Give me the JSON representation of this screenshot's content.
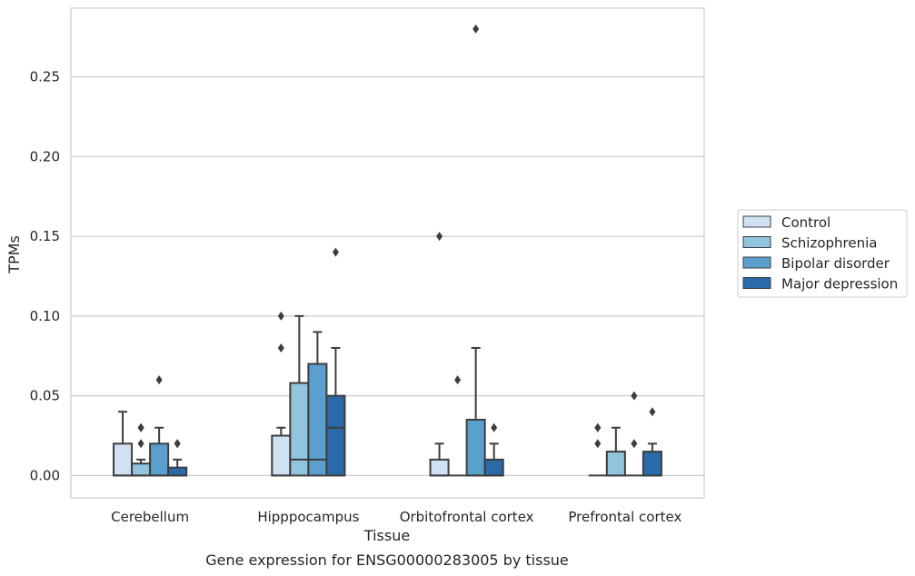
{
  "caption": "Gene expression for ENSG00000283005 by tissue",
  "chart_data": {
    "type": "box",
    "xlabel": "Tissue",
    "ylabel": "TPMs",
    "ylim": [
      -0.014,
      0.293
    ],
    "yticks": [
      0.0,
      0.05,
      0.1,
      0.15,
      0.2,
      0.25
    ],
    "ytick_labels": [
      "0.00",
      "0.05",
      "0.10",
      "0.15",
      "0.20",
      "0.25"
    ],
    "grid": "horizontal",
    "legend_position": "right",
    "categories": [
      "Cerebellum",
      "Hipppocampus",
      "Orbitofrontal cortex",
      "Prefrontal cortex"
    ],
    "series": [
      {
        "name": "Control",
        "color": "#cfe1f2",
        "boxes": [
          {
            "q1": 0.0,
            "median": 0.0,
            "q3": 0.02,
            "whisker_low": 0.0,
            "whisker_high": 0.04,
            "outliers": []
          },
          {
            "q1": 0.0,
            "median": 0.0,
            "q3": 0.025,
            "whisker_low": 0.0,
            "whisker_high": 0.03,
            "outliers": [
              0.08,
              0.1
            ]
          },
          {
            "q1": 0.0,
            "median": 0.0,
            "q3": 0.01,
            "whisker_low": 0.0,
            "whisker_high": 0.02,
            "outliers": [
              0.15
            ]
          },
          {
            "q1": 0.0,
            "median": 0.0,
            "q3": 0.0,
            "whisker_low": 0.0,
            "whisker_high": 0.0,
            "outliers": [
              0.02,
              0.03,
              0.03
            ]
          }
        ]
      },
      {
        "name": "Schizophrenia",
        "color": "#93c4de",
        "boxes": [
          {
            "q1": 0.0,
            "median": 0.0,
            "q3": 0.0075,
            "whisker_low": 0.0,
            "whisker_high": 0.01,
            "outliers": [
              0.02,
              0.03,
              0.03
            ]
          },
          {
            "q1": 0.0,
            "median": 0.01,
            "q3": 0.058,
            "whisker_low": 0.0,
            "whisker_high": 0.1,
            "outliers": []
          },
          {
            "q1": 0.0,
            "median": 0.0,
            "q3": 0.0,
            "whisker_low": 0.0,
            "whisker_high": 0.0,
            "outliers": [
              0.06
            ]
          },
          {
            "q1": 0.0,
            "median": 0.0,
            "q3": 0.015,
            "whisker_low": 0.0,
            "whisker_high": 0.03,
            "outliers": []
          }
        ]
      },
      {
        "name": "Bipolar disorder",
        "color": "#5a9fcd",
        "boxes": [
          {
            "q1": 0.0,
            "median": 0.0,
            "q3": 0.02,
            "whisker_low": 0.0,
            "whisker_high": 0.03,
            "outliers": [
              0.06
            ]
          },
          {
            "q1": 0.0,
            "median": 0.01,
            "q3": 0.07,
            "whisker_low": 0.0,
            "whisker_high": 0.09,
            "outliers": []
          },
          {
            "q1": 0.0,
            "median": 0.0,
            "q3": 0.035,
            "whisker_low": 0.0,
            "whisker_high": 0.08,
            "outliers": [
              0.28
            ]
          },
          {
            "q1": 0.0,
            "median": 0.0,
            "q3": 0.0,
            "whisker_low": 0.0,
            "whisker_high": 0.0,
            "outliers": [
              0.02,
              0.05
            ]
          }
        ]
      },
      {
        "name": "Major depression",
        "color": "#2a6aa8",
        "boxes": [
          {
            "q1": 0.0,
            "median": 0.0,
            "q3": 0.005,
            "whisker_low": 0.0,
            "whisker_high": 0.01,
            "outliers": [
              0.02,
              0.02
            ]
          },
          {
            "q1": 0.0,
            "median": 0.03,
            "q3": 0.05,
            "whisker_low": 0.0,
            "whisker_high": 0.08,
            "outliers": [
              0.14
            ]
          },
          {
            "q1": 0.0,
            "median": 0.0,
            "q3": 0.01,
            "whisker_low": 0.0,
            "whisker_high": 0.02,
            "outliers": [
              0.03
            ]
          },
          {
            "q1": 0.0,
            "median": 0.0,
            "q3": 0.015,
            "whisker_low": 0.0,
            "whisker_high": 0.02,
            "outliers": [
              0.04
            ]
          }
        ]
      }
    ]
  }
}
